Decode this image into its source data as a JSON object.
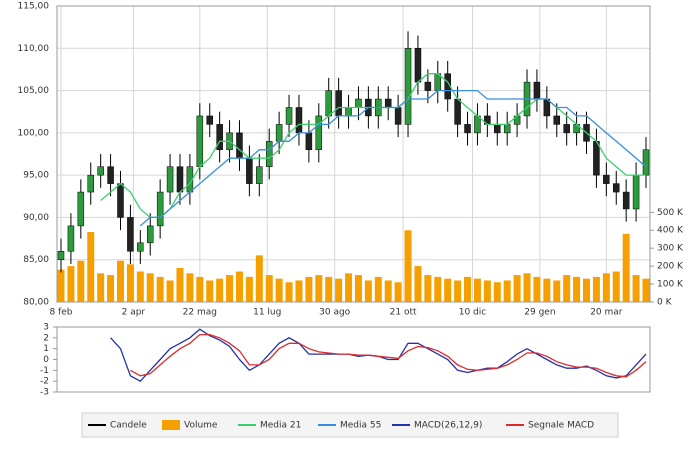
{
  "chart_data": [
    {
      "type": "candlestick",
      "xlim": [
        0,
        59
      ],
      "xticks": [
        {
          "value": 0,
          "label": "8 feb"
        },
        {
          "value": 7.3,
          "label": "2 apr"
        },
        {
          "value": 14,
          "label": "22 mag"
        },
        {
          "value": 20.8,
          "label": "11 lug"
        },
        {
          "value": 27.6,
          "label": "30 ago"
        },
        {
          "value": 34.5,
          "label": "21 ott"
        },
        {
          "value": 41.5,
          "label": "10 dic"
        },
        {
          "value": 48.3,
          "label": "29 gen"
        },
        {
          "value": 55,
          "label": "20 mar"
        }
      ],
      "ylim": [
        80,
        115
      ],
      "yticks": [
        {
          "value": 80,
          "label": "80,00"
        },
        {
          "value": 85,
          "label": "85,00"
        },
        {
          "value": 90,
          "label": "90,00"
        },
        {
          "value": 95,
          "label": "95,00"
        },
        {
          "value": 100,
          "label": "100,00"
        },
        {
          "value": 105,
          "label": "105,00"
        },
        {
          "value": 110,
          "label": "110,00"
        },
        {
          "value": 115,
          "label": "115,00"
        }
      ],
      "y2lim": [
        0,
        1650
      ],
      "y2ticks": [
        {
          "value": 0,
          "label": "0 K"
        },
        {
          "value": 100,
          "label": "100 K"
        },
        {
          "value": 200,
          "label": "200 K"
        },
        {
          "value": 300,
          "label": "300 K"
        },
        {
          "value": 400,
          "label": "400 K"
        },
        {
          "value": 500,
          "label": "500 K"
        }
      ],
      "grid": true,
      "series": [
        {
          "name": "Candele",
          "color": "#000000",
          "up_color": "#2e9a3e",
          "down_color": "#222222",
          "open": [
            85,
            86,
            89,
            93,
            95,
            96,
            94,
            90,
            86,
            87,
            89,
            93,
            96,
            93,
            96,
            102,
            101,
            98,
            100,
            97,
            94,
            96,
            99,
            101,
            103,
            100,
            98,
            102,
            105,
            102,
            103,
            104,
            102,
            104,
            103,
            101,
            110,
            106,
            105,
            107,
            104,
            101,
            100,
            102,
            101,
            100,
            101,
            102,
            106,
            104,
            102,
            101,
            100,
            101,
            99,
            95,
            94,
            93,
            91,
            95
          ],
          "high": [
            87.5,
            90.5,
            94.5,
            96.5,
            97.5,
            97.5,
            95.5,
            91.5,
            88.5,
            90.5,
            94.5,
            97.5,
            97.5,
            97.5,
            103.5,
            103.5,
            102.5,
            101.5,
            101.5,
            98.5,
            97.5,
            100.5,
            102.5,
            104.5,
            104.5,
            101.5,
            103.5,
            106.5,
            106.5,
            104.5,
            105.5,
            105.5,
            105.5,
            105.5,
            104.5,
            112,
            111.5,
            107.5,
            108.5,
            108.5,
            105.5,
            102.5,
            103.5,
            103.5,
            102.5,
            102.5,
            103.5,
            107.5,
            107.5,
            105.5,
            103.5,
            102.5,
            102.5,
            102.5,
            100.5,
            96.5,
            95.5,
            94.5,
            96.5,
            99.5
          ],
          "low": [
            83.5,
            84.5,
            87.5,
            91.5,
            93.5,
            92.5,
            88.5,
            84.5,
            84.5,
            85.5,
            87.5,
            91.5,
            91.5,
            91.5,
            94.5,
            99.5,
            96.5,
            96.5,
            95.5,
            92.5,
            92.5,
            94.5,
            97.5,
            99.5,
            98.5,
            96.5,
            96.5,
            100.5,
            100.5,
            100.5,
            101.5,
            100.5,
            100.5,
            101.5,
            99.5,
            99.5,
            104.5,
            103.5,
            103.5,
            102.5,
            99.5,
            98.5,
            98.5,
            99.5,
            98.5,
            98.5,
            99.5,
            100.5,
            102.5,
            100.5,
            99.5,
            98.5,
            98.5,
            97.5,
            93.5,
            92.5,
            91.5,
            89.5,
            89.5,
            93.5
          ],
          "close": [
            86,
            89,
            93,
            95,
            96,
            94,
            90,
            86,
            87,
            89,
            93,
            96,
            93,
            96,
            102,
            101,
            98,
            100,
            97,
            94,
            96,
            99,
            101,
            103,
            100,
            98,
            102,
            105,
            102,
            103,
            104,
            102,
            104,
            103,
            101,
            110,
            106,
            105,
            107,
            104,
            101,
            100,
            102,
            101,
            100,
            101,
            102,
            106,
            104,
            102,
            101,
            100,
            101,
            99,
            95,
            94,
            93,
            91,
            95,
            98
          ]
        },
        {
          "name": "Volume",
          "color": "#f5a000",
          "axis": "y2",
          "values": [
            180,
            200,
            230,
            390,
            160,
            150,
            230,
            210,
            170,
            160,
            140,
            120,
            190,
            160,
            140,
            120,
            130,
            150,
            170,
            140,
            260,
            150,
            130,
            110,
            120,
            140,
            150,
            140,
            130,
            160,
            150,
            120,
            140,
            120,
            110,
            400,
            200,
            150,
            140,
            130,
            120,
            140,
            130,
            120,
            110,
            120,
            150,
            160,
            140,
            130,
            120,
            150,
            140,
            130,
            140,
            160,
            170,
            380,
            150,
            130
          ]
        },
        {
          "name": "Media 21",
          "color": "#3ccf6e",
          "values": [
            null,
            null,
            null,
            null,
            92,
            93,
            94,
            93,
            91,
            90,
            90,
            91,
            93,
            94,
            96,
            97,
            99,
            99,
            98,
            97,
            97,
            97,
            98,
            100,
            101,
            101,
            101,
            102,
            103,
            103,
            103,
            103,
            103,
            103,
            103,
            104,
            106,
            107,
            107,
            106,
            104,
            103,
            102,
            101,
            101,
            101,
            102,
            103,
            104,
            104,
            103,
            102,
            101,
            100,
            99,
            97,
            96,
            95,
            95,
            95
          ]
        },
        {
          "name": "Media 55",
          "color": "#3a8ede",
          "values": [
            null,
            null,
            null,
            null,
            null,
            null,
            null,
            null,
            89,
            90,
            90,
            91,
            92,
            93,
            94,
            95,
            96,
            97,
            97,
            97,
            98,
            98,
            99,
            99,
            100,
            100,
            101,
            101,
            102,
            102,
            102,
            103,
            103,
            103,
            103,
            104,
            104,
            104,
            105,
            105,
            105,
            105,
            105,
            104,
            104,
            104,
            104,
            104,
            104,
            104,
            103,
            103,
            102,
            102,
            101,
            100,
            99,
            98,
            97,
            96
          ]
        }
      ]
    },
    {
      "type": "line",
      "xlim": [
        0,
        59
      ],
      "ylim": [
        -3,
        3
      ],
      "yticks": [
        -3,
        -2,
        -1,
        0,
        1,
        2,
        3
      ],
      "series": [
        {
          "name": "MACD(26,12,9)",
          "color": "#2233aa",
          "values": [
            null,
            null,
            null,
            null,
            null,
            2,
            1,
            -1.5,
            -2,
            -1,
            0,
            1,
            1.5,
            2,
            2.8,
            2.2,
            1.8,
            1.2,
            0,
            -1,
            -0.5,
            0.5,
            1.5,
            2,
            1.5,
            0.5,
            0.5,
            0.5,
            0.5,
            0.5,
            0.3,
            0.4,
            0.3,
            0,
            0,
            1.5,
            1.5,
            1,
            0.5,
            0,
            -1,
            -1.2,
            -1,
            -0.8,
            -0.8,
            -0.2,
            0.5,
            1,
            0.5,
            0,
            -0.5,
            -0.8,
            -0.8,
            -0.6,
            -1,
            -1.5,
            -1.7,
            -1.5,
            -0.5,
            0.5
          ]
        },
        {
          "name": "Segnale MACD",
          "color": "#dd2a2a",
          "values": [
            null,
            null,
            null,
            null,
            null,
            null,
            null,
            -1,
            -1.5,
            -1.3,
            -0.5,
            0.3,
            1,
            1.5,
            2.3,
            2.3,
            2,
            1.5,
            0.8,
            -0.5,
            -0.5,
            0,
            1,
            1.5,
            1.5,
            1,
            0.7,
            0.6,
            0.5,
            0.5,
            0.4,
            0.4,
            0.3,
            0.2,
            0.1,
            0.8,
            1.2,
            1.1,
            0.8,
            0.3,
            -0.5,
            -0.9,
            -1,
            -0.9,
            -0.8,
            -0.5,
            0,
            0.6,
            0.6,
            0.3,
            -0.2,
            -0.5,
            -0.7,
            -0.7,
            -0.8,
            -1.2,
            -1.5,
            -1.6,
            -1,
            -0.2
          ]
        }
      ]
    }
  ]
}
